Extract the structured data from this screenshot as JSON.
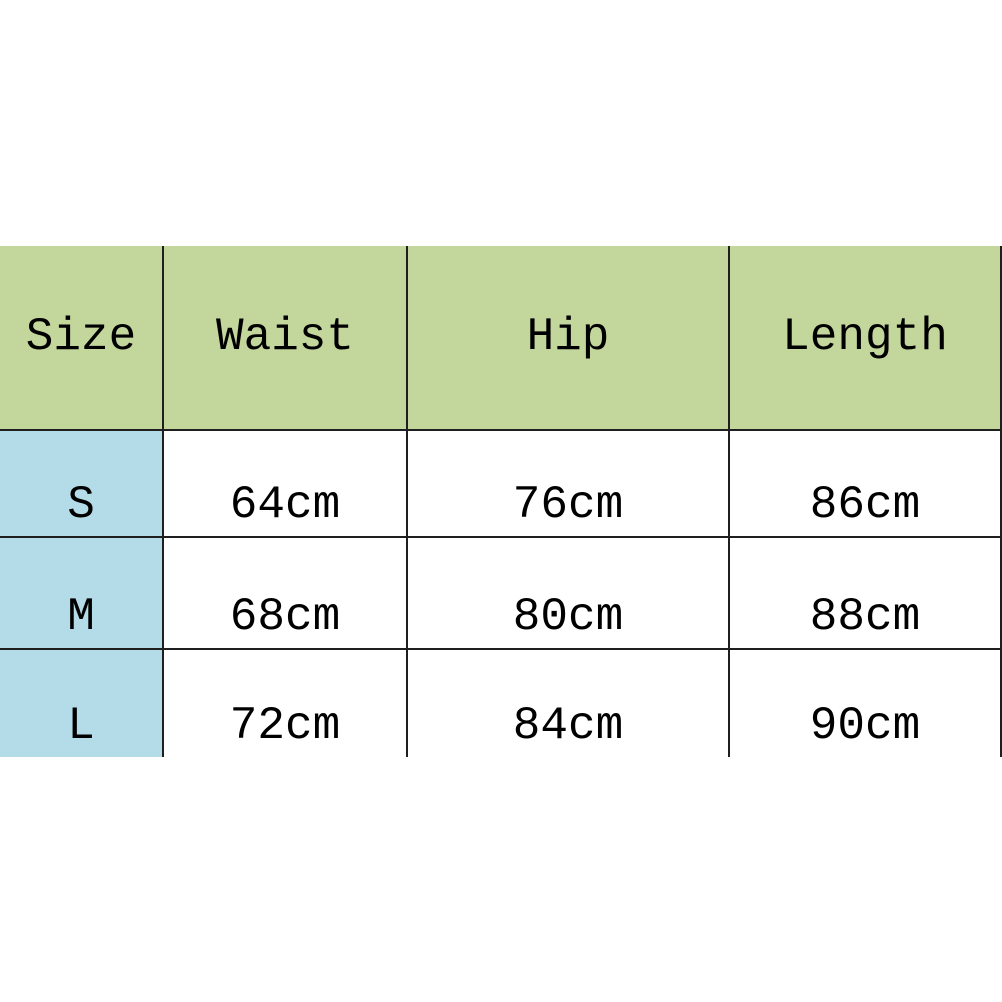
{
  "page": {
    "background": "#ffffff",
    "description": "Apparel size chart table"
  },
  "table": {
    "columns": [
      {
        "label": "Size"
      },
      {
        "label": "Waist"
      },
      {
        "label": "Hip"
      },
      {
        "label": "Length"
      }
    ],
    "rows": [
      {
        "size": "S",
        "waist": "64cm",
        "hip": "76cm",
        "length": "86cm"
      },
      {
        "size": "M",
        "waist": "68cm",
        "hip": "80cm",
        "length": "88cm"
      },
      {
        "size": "L",
        "waist": "72cm",
        "hip": "84cm",
        "length": "90cm"
      }
    ],
    "colors": {
      "header_bg": "#c3d69b",
      "size_column_bg": "#b3dce8",
      "cell_bg": "#ffffff",
      "border": "#1f1f1f",
      "text": "#000000"
    }
  },
  "chart_data": {
    "type": "table",
    "title": "",
    "columns": [
      "Size",
      "Waist",
      "Hip",
      "Length"
    ],
    "rows": [
      [
        "S",
        "64cm",
        "76cm",
        "86cm"
      ],
      [
        "M",
        "68cm",
        "80cm",
        "88cm"
      ],
      [
        "L",
        "72cm",
        "84cm",
        "90cm"
      ]
    ]
  }
}
